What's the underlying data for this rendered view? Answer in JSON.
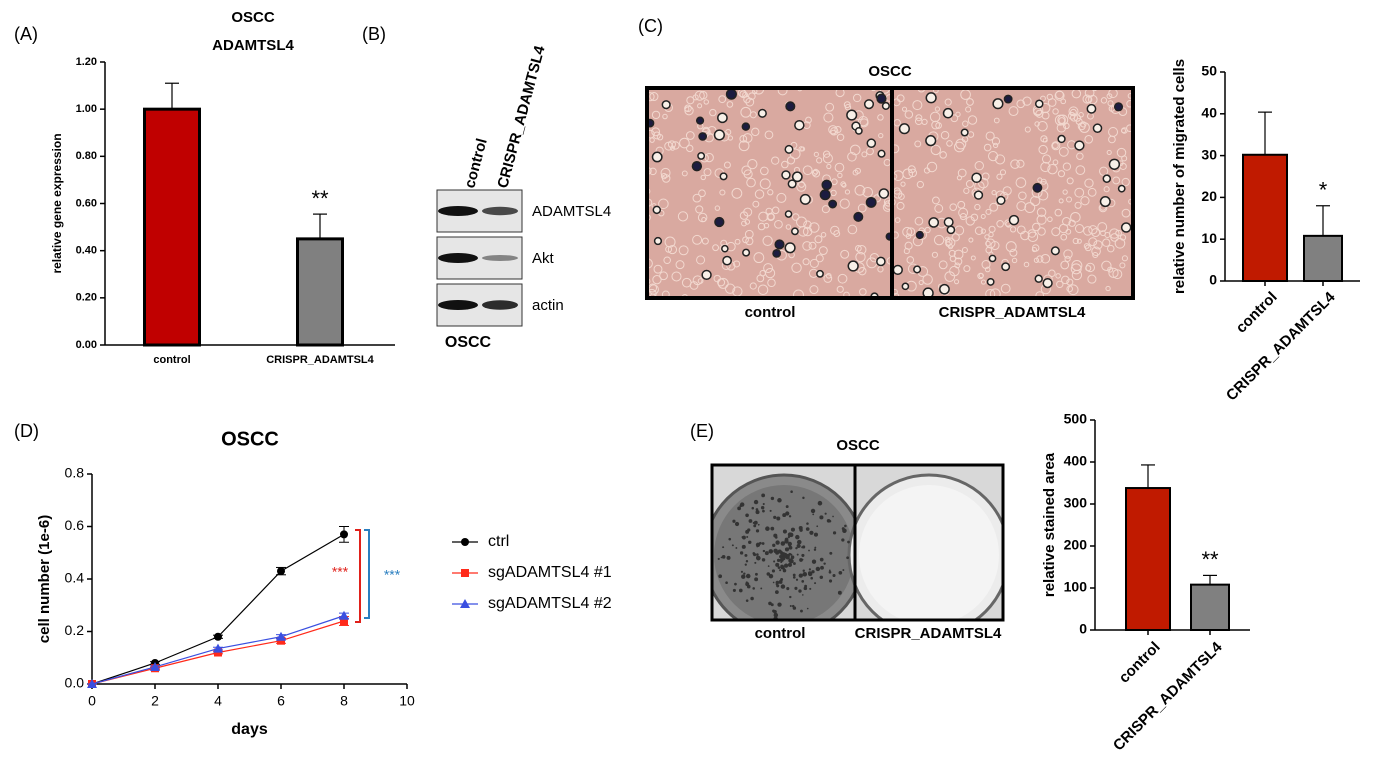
{
  "panel_labels": [
    "(A)",
    "(B)",
    "(C)",
    "(D)",
    "(E)"
  ],
  "chart_data": [
    {
      "type": "bar",
      "title": "OSCC",
      "subtitle": "ADAMTSL4",
      "y_label": "relative gene expression",
      "categories": [
        "control",
        "CRISPR_ADAMTSL4"
      ],
      "values": [
        1.0,
        0.45
      ],
      "errors": [
        0.11,
        0.105
      ],
      "colors": [
        "#c00000",
        "#808080"
      ],
      "significance": [
        null,
        "**"
      ],
      "ylim": [
        0,
        1.2
      ],
      "yticks": [
        {
          "value": 0,
          "label": "0.00"
        },
        {
          "value": 0.2,
          "label": "0.20"
        },
        {
          "value": 0.4,
          "label": "0.40"
        },
        {
          "value": 0.6,
          "label": "0.60"
        },
        {
          "value": 0.8,
          "label": "0.80"
        },
        {
          "value": 1.0,
          "label": "1.00"
        },
        {
          "value": 1.2,
          "label": "1.20"
        }
      ],
      "grid": false
    },
    {
      "type": "bar",
      "y_label": "relative number of migrated cells",
      "categories": [
        "control",
        "CRISPR_ADAMTSL4"
      ],
      "values": [
        30.2,
        10.8
      ],
      "errors": [
        10.2,
        7.2
      ],
      "colors": [
        "#c01a00",
        "#808080"
      ],
      "significance": [
        null,
        "*"
      ],
      "ylim": [
        0,
        50
      ],
      "yticks": [
        0,
        10,
        20,
        30,
        40,
        50
      ],
      "grid": false
    },
    {
      "type": "line",
      "title": "OSCC",
      "x_label": "days",
      "y_label": "cell number (1e-6)",
      "x": [
        0,
        2,
        4,
        6,
        8
      ],
      "series": [
        {
          "name": "ctrl",
          "color": "#000000",
          "marker": "circle",
          "values": [
            0,
            0.08,
            0.18,
            0.43,
            0.57
          ],
          "errors": [
            0,
            0.005,
            0.006,
            0.014,
            0.03
          ]
        },
        {
          "name": "sgADAMTSL4 #1",
          "color": "#ff2a1a",
          "marker": "square",
          "values": [
            0,
            0.06,
            0.12,
            0.165,
            0.24
          ],
          "errors": [
            0,
            0.004,
            0.005,
            0.01,
            0.017
          ]
        },
        {
          "name": "sgADAMTSL4 #2",
          "color": "#3a4fe0",
          "marker": "triangle",
          "values": [
            0,
            0.065,
            0.135,
            0.18,
            0.26
          ],
          "errors": [
            0,
            0.004,
            0.005,
            0.008,
            0.01
          ]
        }
      ],
      "significance": [
        {
          "text": "***",
          "color": "#e0201a"
        },
        {
          "text": "***",
          "color": "#2a7fc0"
        }
      ],
      "xlim": [
        0,
        10
      ],
      "xticks": [
        0,
        2,
        4,
        6,
        8,
        10
      ],
      "ylim": [
        0,
        0.8
      ],
      "yticks": [
        {
          "value": 0,
          "label": "0.0"
        },
        0.2,
        0.4,
        0.6,
        0.8
      ],
      "legend": "right",
      "grid": false
    },
    {
      "type": "bar",
      "y_label": "relative stained area",
      "categories": [
        "control",
        "CRISPR_ADAMTSL4"
      ],
      "values": [
        338,
        108
      ],
      "errors": [
        55,
        22
      ],
      "colors": [
        "#c01a00",
        "#808080"
      ],
      "significance": [
        null,
        "**"
      ],
      "ylim": [
        0,
        500
      ],
      "yticks": [
        0,
        100,
        200,
        300,
        400,
        500
      ],
      "grid": false
    }
  ],
  "blot": {
    "lanes": [
      "control",
      "CRISPR_ADAMTSL4"
    ],
    "rows": [
      "ADAMTSL4",
      "Akt",
      "actin"
    ],
    "caption": "OSCC"
  },
  "migration_images": {
    "title": "OSCC",
    "labels": [
      "control",
      "CRISPR_ADAMTSL4"
    ]
  },
  "colony_images": {
    "title": "OSCC",
    "labels": [
      "control",
      "CRISPR_ADAMTSL4"
    ]
  }
}
